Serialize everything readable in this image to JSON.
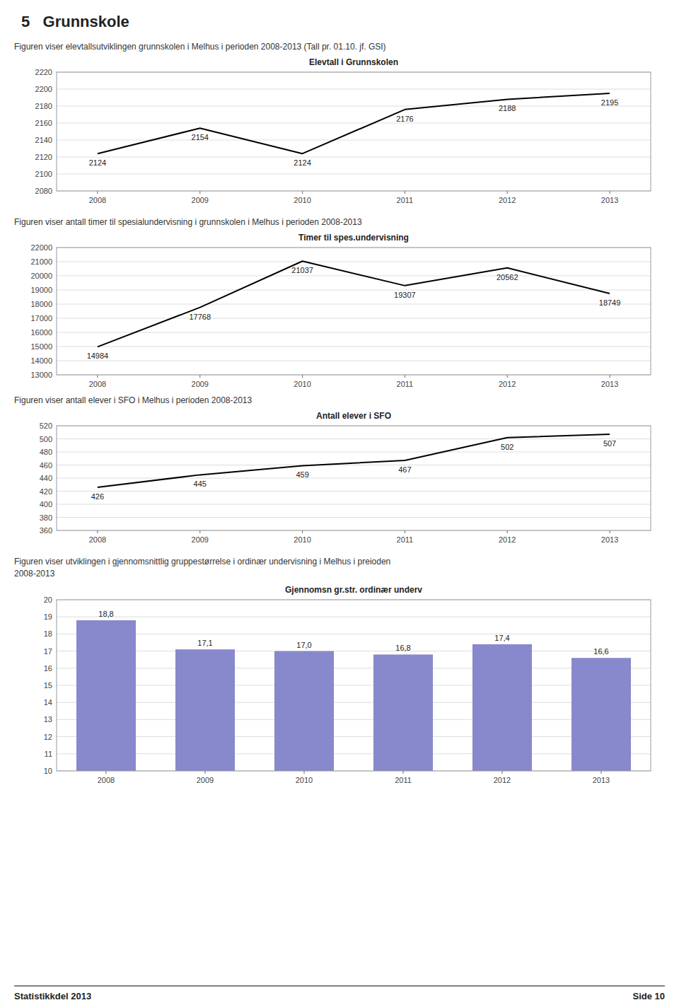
{
  "page_title": "5   Grunnskole",
  "chart_data": [
    {
      "type": "line",
      "title": "Elevtall i Grunnskolen",
      "subtitle": "Figuren viser elevtallsutviklingen grunnskolen i Melhus i perioden 2008-2013 (Tall pr. 01.10. jf. GSI)",
      "x": [
        2008,
        2009,
        2010,
        2011,
        2012,
        2013
      ],
      "values": [
        2124,
        2154,
        2124,
        2176,
        2188,
        2195
      ],
      "color": "#000000",
      "xlim": [
        2007.6,
        2013.4
      ],
      "xticks": [
        2008,
        2009,
        2010,
        2011,
        2012,
        2013
      ],
      "ylim": [
        2080,
        2220
      ],
      "yticks": [
        2080,
        2100,
        2120,
        2140,
        2160,
        2180,
        2200,
        2220
      ],
      "grid": true,
      "data_labels": true
    },
    {
      "type": "line",
      "title": "Timer til spes.undervisning",
      "subtitle": "Figuren viser antall timer til spesialundervisning i grunnskolen i Melhus i perioden 2008-2013",
      "x": [
        2008,
        2009,
        2010,
        2011,
        2012,
        2013
      ],
      "values": [
        14984,
        17768,
        21037,
        19307,
        20562,
        18749
      ],
      "color": "#000000",
      "xlim": [
        2007.6,
        2013.4
      ],
      "xticks": [
        2008,
        2009,
        2010,
        2011,
        2012,
        2013
      ],
      "ylim": [
        13000,
        22000
      ],
      "yticks": [
        13000,
        14000,
        15000,
        16000,
        17000,
        18000,
        19000,
        20000,
        21000,
        22000
      ],
      "grid": true,
      "data_labels": true
    },
    {
      "type": "line",
      "title": "Antall elever i SFO",
      "subtitle": "Figuren viser antall elever i SFO i Melhus i perioden 2008-2013",
      "x": [
        2008,
        2009,
        2010,
        2011,
        2012,
        2013
      ],
      "values": [
        426,
        445,
        459,
        467,
        502,
        507
      ],
      "color": "#000000",
      "xlim": [
        2007.6,
        2013.4
      ],
      "xticks": [
        2008,
        2009,
        2010,
        2011,
        2012,
        2013
      ],
      "ylim": [
        360,
        520
      ],
      "yticks": [
        360,
        380,
        400,
        420,
        440,
        460,
        480,
        500,
        520
      ],
      "grid": true,
      "data_labels": true
    },
    {
      "type": "bar",
      "title": "Gjennomsn gr.str. ordinær underv",
      "subtitle": [
        "Figuren viser utviklingen i gjennomsnittlig gruppestørrelse i ordinær undervisning i Melhus i preioden",
        "2008-2013"
      ],
      "categories": [
        "2008",
        "2009",
        "2010",
        "2011",
        "2012",
        "2013"
      ],
      "values": [
        18.8,
        17.1,
        17.0,
        16.8,
        17.4,
        16.6
      ],
      "value_labels": [
        "18,8",
        "17,1",
        "17,0",
        "16,8",
        "17,4",
        "16,6"
      ],
      "color": "#8888cc",
      "ylim": [
        10,
        20
      ],
      "yticks": [
        10,
        11,
        12,
        13,
        14,
        15,
        16,
        17,
        18,
        19,
        20
      ],
      "grid": true,
      "data_labels": true
    }
  ],
  "footer_left": "Statistikkdel 2013",
  "footer_right": "Side 10"
}
